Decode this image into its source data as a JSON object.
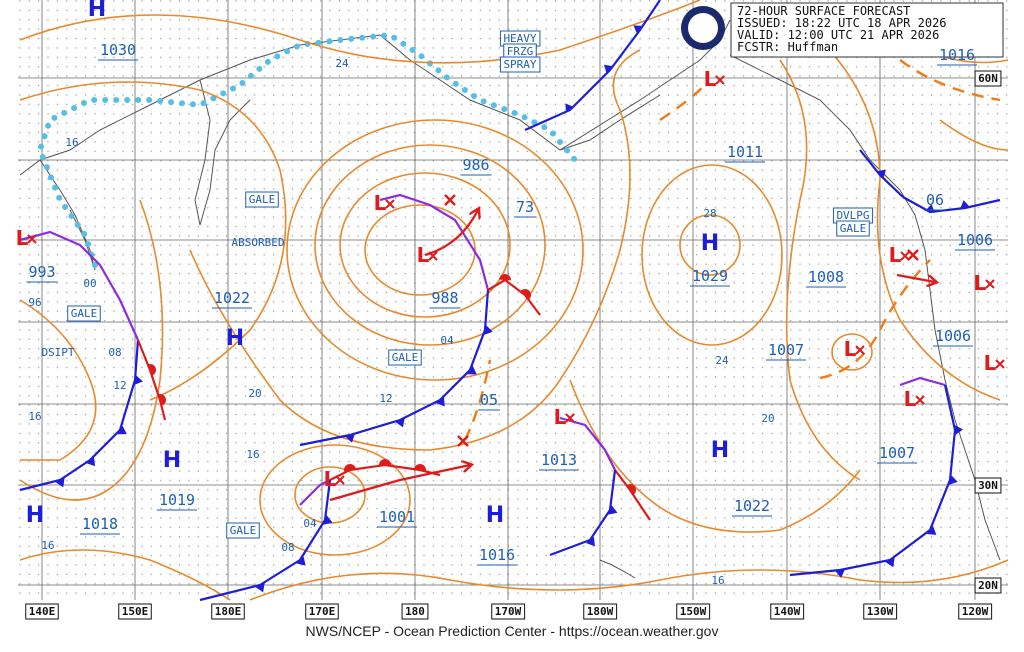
{
  "header": {
    "lines": [
      "72-HOUR SURFACE FORECAST",
      "ISSUED: 18:22 UTC 18 APR 2026",
      "VALID:  12:00 UTC 21 APR 2026",
      "FCSTR:  Huffman"
    ]
  },
  "footer": "NWS/NCEP - Ocean Prediction Center - https://ocean.weather.gov",
  "longitudes": [
    "140E",
    "150E",
    "180E",
    "170E",
    "180",
    "170W",
    "180W",
    "150W",
    "140W",
    "130W",
    "120W"
  ],
  "latitudes": [
    "60N",
    "30N",
    "20N"
  ],
  "pressure_centers": [
    "H",
    "H",
    "H",
    "H",
    "H",
    "H",
    "H",
    "L",
    "L",
    "L",
    "L",
    "L",
    "L",
    "L",
    "L",
    "L",
    "L",
    "L"
  ],
  "pressures": [
    "1030",
    "993",
    "1022",
    "1019",
    "1018",
    "986",
    "73",
    "988",
    "05",
    "1001",
    "1016",
    "1013",
    "1011",
    "1029",
    "1008",
    "1007",
    "1007",
    "1022",
    "06",
    "1006",
    "1006",
    "1016"
  ],
  "isobar_labels": [
    "24",
    "16",
    "96",
    "00",
    "08",
    "12",
    "16",
    "16",
    "20",
    "16",
    "12",
    "04",
    "28",
    "24",
    "20",
    "16",
    "04",
    "08"
  ],
  "warnings": [
    "GALE",
    "GALE",
    "GALE",
    "GALE",
    "HEAVY",
    "FRZG",
    "SPRAY",
    "DVLPG",
    "GALE"
  ],
  "notes": [
    "ABSORBED",
    "DSIPT"
  ]
}
